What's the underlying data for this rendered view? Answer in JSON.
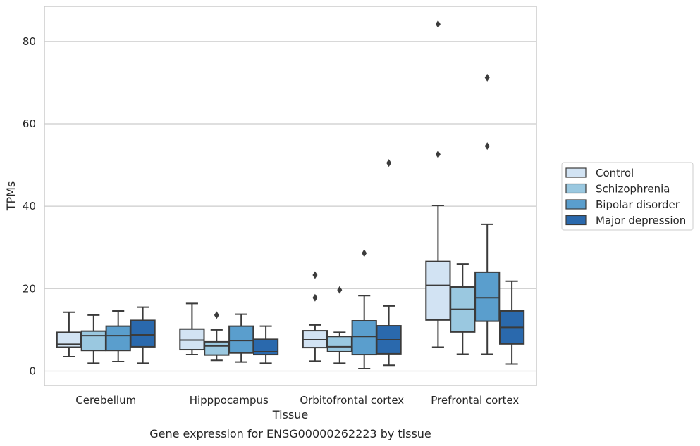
{
  "chart_data": {
    "type": "box",
    "title": "",
    "xlabel": "Tissue",
    "ylabel": "TPMs",
    "caption": "Gene expression for ENSG00000262223 by tissue",
    "ylim": [
      -3.5,
      88.5
    ],
    "yticks": [
      0,
      20,
      40,
      60,
      80
    ],
    "grid": "horizontal",
    "legend_position": "right",
    "categories": [
      "Cerebellum",
      "Hipppocampus",
      "Orbitofrontal cortex",
      "Prefrontal cortex"
    ],
    "series": [
      {
        "name": "Control",
        "color": "#d2e3f3",
        "boxes": [
          {
            "whisker_low": 3.5,
            "q1": 5.8,
            "median": 6.5,
            "q3": 9.4,
            "whisker_high": 14.3,
            "outliers": []
          },
          {
            "whisker_low": 4.0,
            "q1": 5.2,
            "median": 7.5,
            "q3": 10.2,
            "whisker_high": 16.4,
            "outliers": []
          },
          {
            "whisker_low": 2.4,
            "q1": 5.7,
            "median": 7.6,
            "q3": 9.8,
            "whisker_high": 11.2,
            "outliers": [
              17.8,
              23.3
            ]
          },
          {
            "whisker_low": 5.8,
            "q1": 12.4,
            "median": 20.8,
            "q3": 26.6,
            "whisker_high": 40.2,
            "outliers": [
              52.6,
              84.2
            ]
          }
        ]
      },
      {
        "name": "Schizophrenia",
        "color": "#9ac8e0",
        "boxes": [
          {
            "whisker_low": 1.9,
            "q1": 5.0,
            "median": 8.6,
            "q3": 9.7,
            "whisker_high": 13.6,
            "outliers": []
          },
          {
            "whisker_low": 2.6,
            "q1": 3.9,
            "median": 6.1,
            "q3": 7.1,
            "whisker_high": 10.0,
            "outliers": [
              13.6
            ]
          },
          {
            "whisker_low": 1.9,
            "q1": 4.7,
            "median": 5.9,
            "q3": 8.4,
            "whisker_high": 9.4,
            "outliers": [
              19.7
            ]
          },
          {
            "whisker_low": 4.1,
            "q1": 9.5,
            "median": 15.0,
            "q3": 20.4,
            "whisker_high": 26.0,
            "outliers": []
          }
        ]
      },
      {
        "name": "Bipolar disorder",
        "color": "#5a9ecd",
        "boxes": [
          {
            "whisker_low": 2.3,
            "q1": 5.0,
            "median": 8.6,
            "q3": 10.9,
            "whisker_high": 14.6,
            "outliers": []
          },
          {
            "whisker_low": 2.2,
            "q1": 4.4,
            "median": 7.4,
            "q3": 10.9,
            "whisker_high": 13.8,
            "outliers": []
          },
          {
            "whisker_low": 0.6,
            "q1": 4.0,
            "median": 8.4,
            "q3": 12.2,
            "whisker_high": 18.3,
            "outliers": [
              28.6
            ]
          },
          {
            "whisker_low": 4.1,
            "q1": 12.1,
            "median": 17.8,
            "q3": 24.0,
            "whisker_high": 35.6,
            "outliers": [
              54.6,
              71.2
            ]
          }
        ]
      },
      {
        "name": "Major depression",
        "color": "#2a69ad",
        "boxes": [
          {
            "whisker_low": 1.9,
            "q1": 5.9,
            "median": 8.8,
            "q3": 12.3,
            "whisker_high": 15.5,
            "outliers": []
          },
          {
            "whisker_low": 1.9,
            "q1": 4.0,
            "median": 4.7,
            "q3": 7.7,
            "whisker_high": 10.9,
            "outliers": []
          },
          {
            "whisker_low": 1.4,
            "q1": 4.2,
            "median": 7.6,
            "q3": 11.0,
            "whisker_high": 15.8,
            "outliers": [
              50.5
            ]
          },
          {
            "whisker_low": 1.7,
            "q1": 6.6,
            "median": 10.6,
            "q3": 14.6,
            "whisker_high": 21.8,
            "outliers": []
          }
        ]
      }
    ]
  }
}
